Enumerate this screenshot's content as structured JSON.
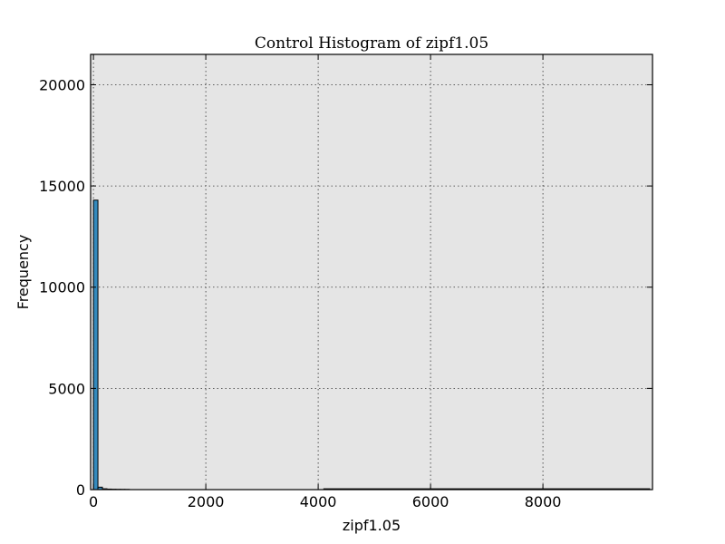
{
  "chart_data": {
    "type": "bar",
    "title": "Control Histogram of zipf1.05",
    "xlabel": "zipf1.05",
    "ylabel": "Frequency",
    "xlim": [
      -50,
      9950
    ],
    "ylim": [
      0,
      21500
    ],
    "x_ticks": [
      0,
      2000,
      4000,
      6000,
      8000
    ],
    "x_tick_labels": [
      "0",
      "2000",
      "4000",
      "6000",
      "8000"
    ],
    "y_ticks": [
      0,
      5000,
      10000,
      15000,
      20000
    ],
    "y_tick_labels": [
      "0",
      "5000",
      "10000",
      "15000",
      "20000"
    ],
    "grid": true,
    "plot_background": "#e5e5e5",
    "bar_color": "#348abd",
    "bins": [
      {
        "x0": 0,
        "x1": 80,
        "count": 14300
      },
      {
        "x0": 80,
        "x1": 160,
        "count": 120
      },
      {
        "x0": 160,
        "x1": 240,
        "count": 40
      },
      {
        "x0": 240,
        "x1": 320,
        "count": 25
      },
      {
        "x0": 320,
        "x1": 400,
        "count": 18
      },
      {
        "x0": 400,
        "x1": 480,
        "count": 14
      },
      {
        "x0": 480,
        "x1": 560,
        "count": 12
      },
      {
        "x0": 560,
        "x1": 640,
        "count": 10
      },
      {
        "x0": 4100,
        "x1": 9900,
        "count": 40
      }
    ]
  }
}
